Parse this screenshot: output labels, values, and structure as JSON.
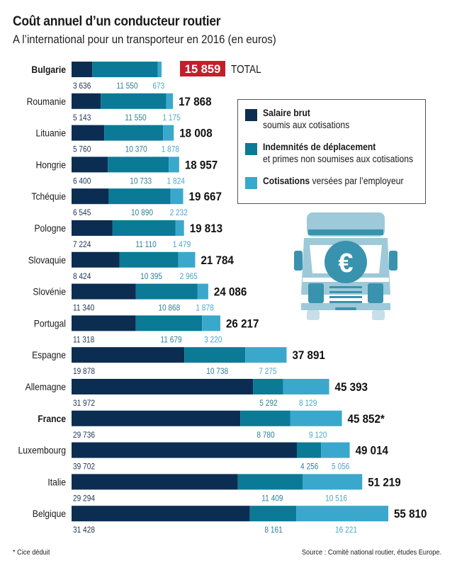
{
  "header": {
    "title": "Coût annuel d’un conducteur routier",
    "subtitle": "A l’international pour un transporteur en 2016 (en euros)"
  },
  "colors": {
    "salaire": "#0c2d52",
    "indemnites": "#0a7a96",
    "cotisations": "#3aa8cc",
    "highlight_total_bg": "#c41e2a",
    "truck_light": "#9ec9d8",
    "truck_dark": "#3a93ae"
  },
  "legend": {
    "items": [
      {
        "bold": "Salaire brut",
        "normal": "",
        "second_line": "soumis aux cotisations"
      },
      {
        "bold": "Indemnités de déplacement",
        "normal": "",
        "second_line": "et primes non soumises aux cotisations"
      },
      {
        "bold": "Cotisations",
        "normal": " versées par l’employeur",
        "second_line": ""
      }
    ]
  },
  "footer": {
    "footnote": "* Cice déduit",
    "source": "Source : Comité national routier, études Europe."
  },
  "illustration": {
    "icon": "truck-euro-icon",
    "symbol": "€"
  },
  "chart_data": {
    "type": "bar",
    "orientation": "horizontal",
    "stacked": true,
    "title": "Coût annuel d’un conducteur routier",
    "subtitle": "A l’international pour un transporteur en 2016 (en euros)",
    "xlabel": "",
    "ylabel": "",
    "xlim": [
      0,
      56000
    ],
    "grid": false,
    "legend_position": "top-right",
    "total_suffix_label": "TOTAL",
    "categories": [
      "Bulgarie",
      "Roumanie",
      "Lituanie",
      "Hongrie",
      "Tchéquie",
      "Pologne",
      "Slovaquie",
      "Slovénie",
      "Portugal",
      "Espagne",
      "Allemagne",
      "France",
      "Luxembourg",
      "Italie",
      "Belgique"
    ],
    "bold_categories": [
      "Bulgarie",
      "France"
    ],
    "series": [
      {
        "name": "Salaire brut soumis aux cotisations",
        "values": [
          3636,
          5143,
          5760,
          6400,
          6545,
          7224,
          8424,
          11340,
          11318,
          19878,
          31972,
          29736,
          39702,
          29294,
          31428
        ],
        "labels": [
          "3 636",
          "5 143",
          "5 760",
          "6 400",
          "6 545",
          "7 224",
          "8 424",
          "11 340",
          "11 318",
          "19 878",
          "31 972",
          "29 736",
          "39 702",
          "29 294",
          "31 428"
        ]
      },
      {
        "name": "Indemnités de déplacement et primes non soumises aux cotisations",
        "values": [
          11550,
          11550,
          10370,
          10733,
          10890,
          11110,
          10395,
          10868,
          11679,
          10738,
          5292,
          8780,
          4256,
          11409,
          8161
        ],
        "labels": [
          "11 550",
          "11 550",
          "10 370",
          "10 733",
          "10 890",
          "11 110",
          "10 395",
          "10 868",
          "11 679",
          "10 738",
          "5 292",
          "8 780",
          "4 256",
          "11 409",
          "8 161"
        ]
      },
      {
        "name": "Cotisations versées par l’employeur",
        "values": [
          673,
          1175,
          1878,
          1824,
          2232,
          1479,
          2965,
          1878,
          3220,
          7275,
          8129,
          9120,
          5056,
          10516,
          16221
        ],
        "labels": [
          "673",
          "1 175",
          "1 878",
          "1 824",
          "2 232",
          "1 479",
          "2 965",
          "1 878",
          "3 220",
          "7 275",
          "8 129",
          "9 120",
          "5 056",
          "10 516",
          "16 221"
        ]
      }
    ],
    "totals": [
      15859,
      17868,
      18008,
      18957,
      19667,
      19813,
      21784,
      24086,
      26217,
      37891,
      45393,
      45852,
      49014,
      51219,
      55810
    ],
    "total_labels": [
      "15 859",
      "17 868",
      "18 008",
      "18 957",
      "19 667",
      "19 813",
      "21 784",
      "24 086",
      "26 217",
      "37 891",
      "45 393",
      "45 852*",
      "49 014",
      "51 219",
      "55 810"
    ],
    "highlighted_total_index": 0,
    "annotations": [
      "* Cice déduit"
    ]
  }
}
